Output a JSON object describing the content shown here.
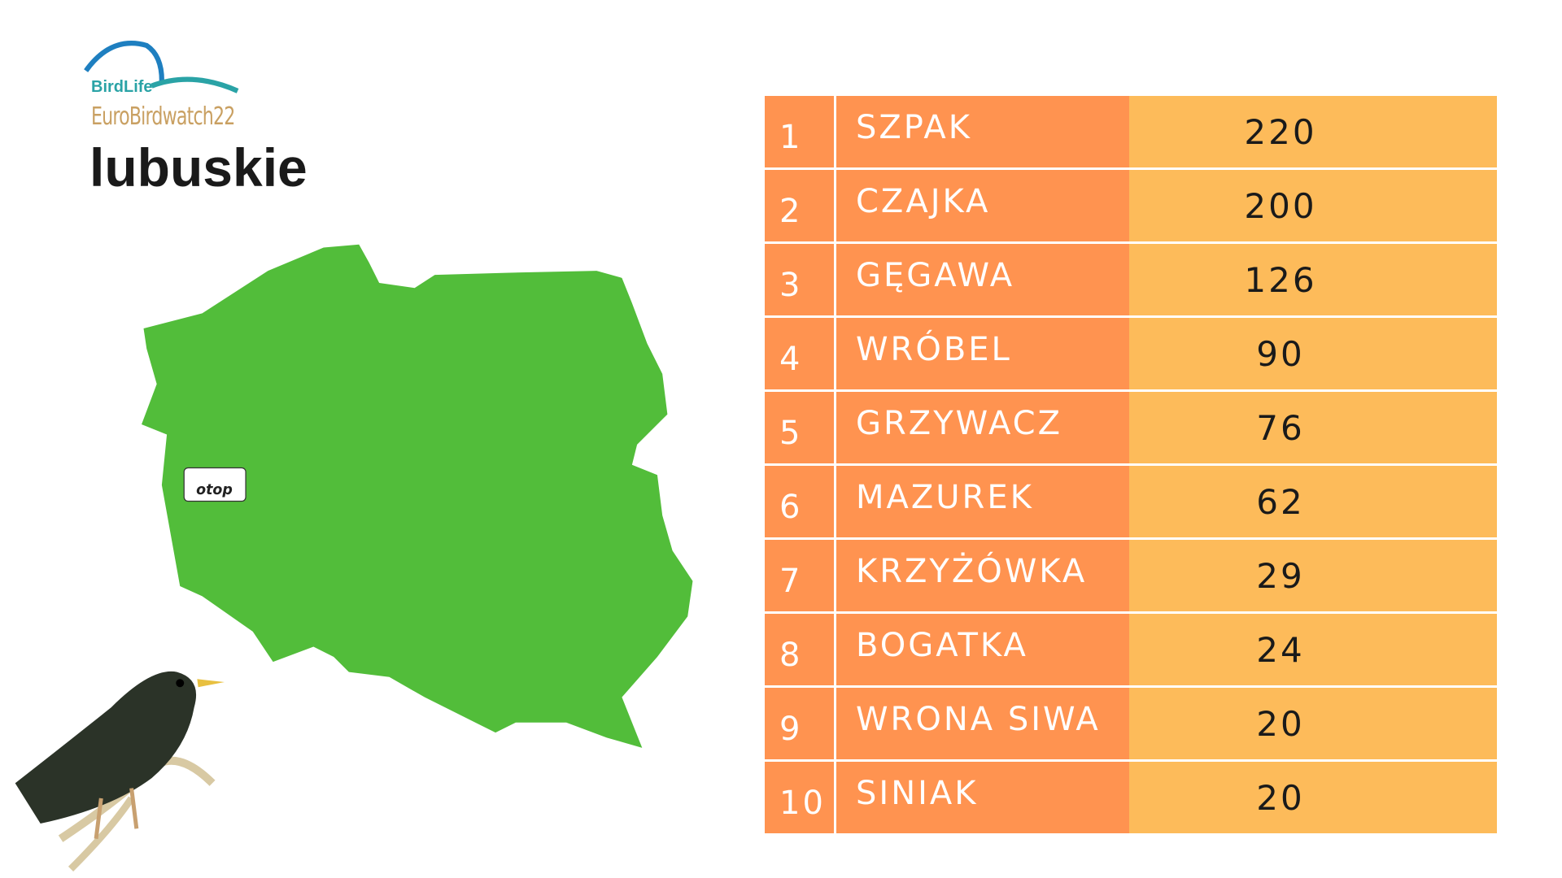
{
  "logo": {
    "brand": "BirdLife",
    "event": "EuroBirdwatch22"
  },
  "title": "lubuskie",
  "marker": "otop",
  "table": {
    "rows": [
      [
        1,
        "SZPAK",
        220
      ],
      [
        2,
        "CZAJKA",
        200
      ],
      [
        3,
        "GĘGAWA",
        126
      ],
      [
        4,
        "WRÓBEL",
        90
      ],
      [
        5,
        "GRZYWACZ",
        76
      ],
      [
        6,
        "MAZUREK",
        62
      ],
      [
        7,
        "KRZYŻÓWKA",
        29
      ],
      [
        8,
        "BOGATKA",
        24
      ],
      [
        9,
        "WRONA SIWA",
        20
      ],
      [
        10,
        "SINIAK",
        20
      ]
    ]
  }
}
